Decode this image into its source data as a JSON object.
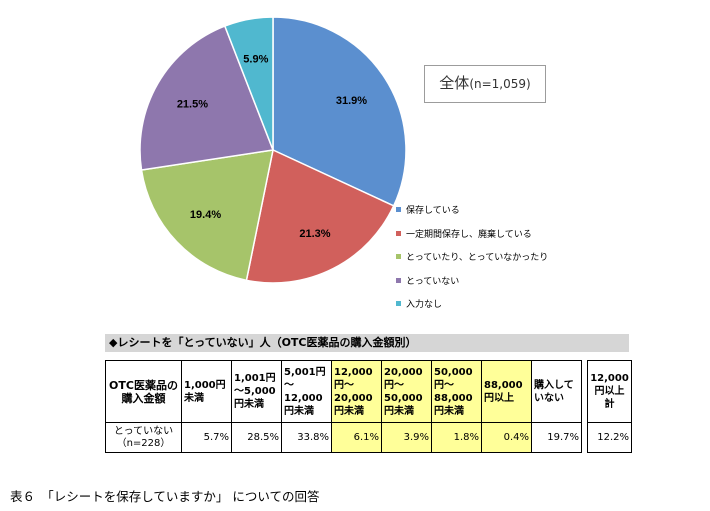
{
  "chart_data": [
    {
      "type": "pie",
      "slices": [
        {
          "label": "保存している",
          "value": 31.9,
          "display": "31.9%",
          "color": "#5b8fcf"
        },
        {
          "label": "一定期間保存し、廃棄している",
          "value": 21.3,
          "display": "21.3%",
          "color": "#d1605c"
        },
        {
          "label": "とっていたり、とっていなかったり",
          "value": 19.4,
          "display": "19.4%",
          "color": "#a6c46a"
        },
        {
          "label": "とっていない",
          "value": 21.5,
          "display": "21.5%",
          "color": "#8e77ad"
        },
        {
          "label": "入力なし",
          "value": 5.9,
          "display": "5.9%",
          "color": "#50b8cf"
        }
      ],
      "legend_position": "right",
      "overall": {
        "label": "全体",
        "n": "(n=1,059)"
      }
    },
    {
      "type": "table",
      "title": "◆レシートを「とっていない」人（OTC医薬品の購入金額別）",
      "row_header": "OTC医薬品の購入金額",
      "columns": [
        {
          "header": "1,000円未満",
          "value": "5.7%",
          "highlight": false
        },
        {
          "header": "1,001円～5,000円未満",
          "value": "28.5%",
          "highlight": false
        },
        {
          "header": "5,001円～12,000円未満",
          "value": "33.8%",
          "highlight": false
        },
        {
          "header": "12,000円～20,000円未満",
          "value": "6.1%",
          "highlight": true
        },
        {
          "header": "20,000円～50,000円未満",
          "value": "3.9%",
          "highlight": true
        },
        {
          "header": "50,000円～88,000円未満",
          "value": "1.8%",
          "highlight": true
        },
        {
          "header": "88,000円以上",
          "value": "0.4%",
          "highlight": true
        },
        {
          "header": "購入していない",
          "value": "19.7%",
          "highlight": false
        }
      ],
      "total": {
        "header": "12,000円以上計",
        "value": "12.2%"
      },
      "row": {
        "label": "とっていない",
        "n": "（n=228）"
      }
    }
  ],
  "caption": "表６　「レシートを保存していますか」 についての回答"
}
